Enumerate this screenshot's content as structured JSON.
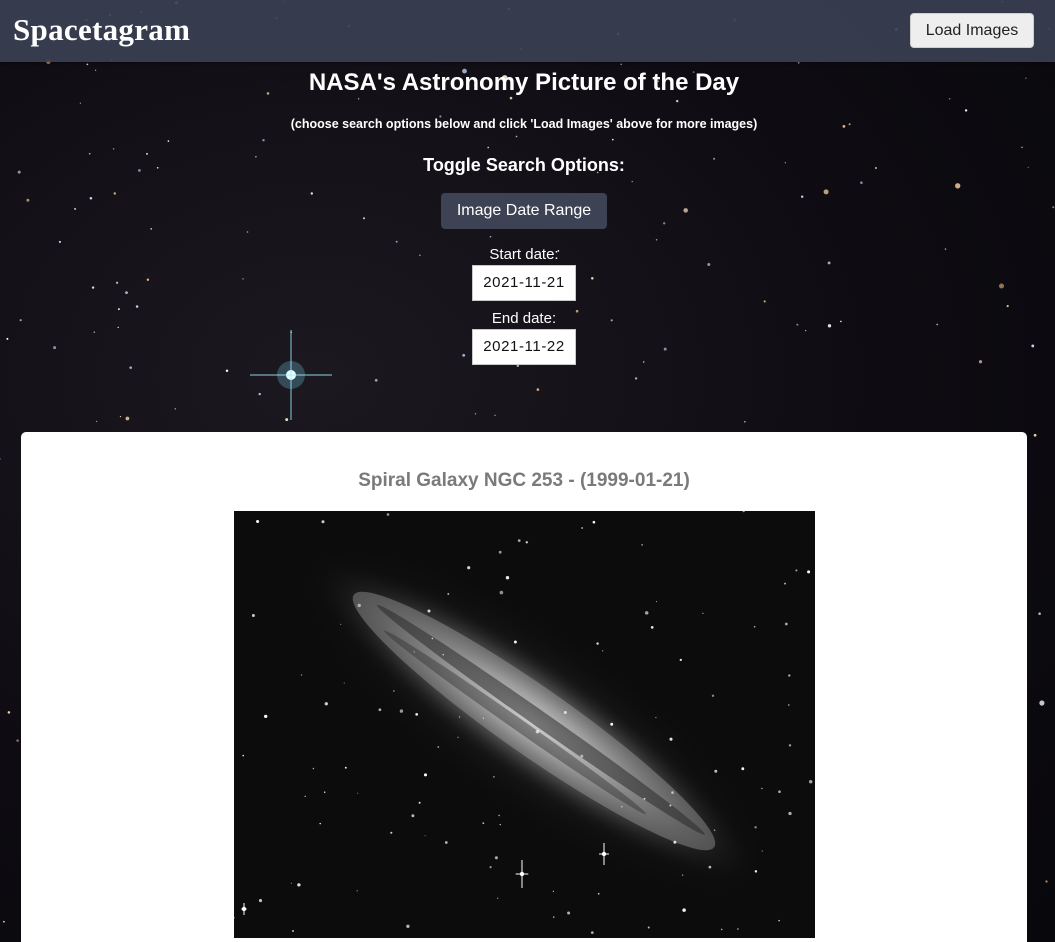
{
  "navbar": {
    "brand": "Spacetagram",
    "load_button_label": "Load Images"
  },
  "header": {
    "title": "NASA's Astronomy Picture of the Day",
    "subtitle": "(choose search options below and click 'Load Images' above for more images)",
    "toggle_heading": "Toggle Search Options:",
    "range_button_label": "Image Date Range",
    "start_label": "Start date:",
    "start_value": "2021-11-21",
    "end_label": "End date:",
    "end_value": "2021-11-22"
  },
  "card": {
    "title": "Spiral Galaxy NGC 253 - (1999-01-21)"
  },
  "colors": {
    "navbar_bg": "#3a4052",
    "button_dark": "#3d4354",
    "card_title": "#7a7a7a"
  }
}
